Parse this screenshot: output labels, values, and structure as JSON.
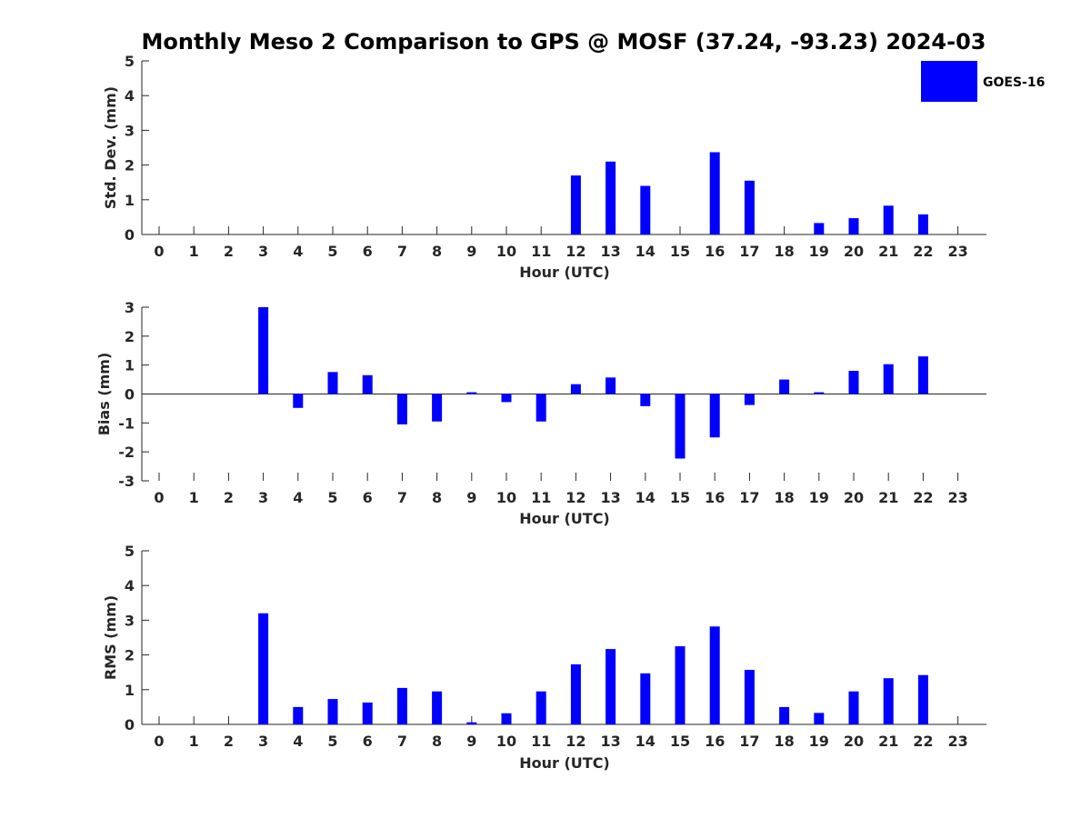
{
  "title": "Monthly Meso 2 Comparison to GPS @ MOSF (37.24, -93.23) 2024-03",
  "legend": {
    "label": "GOES-16",
    "color": "#0000ff"
  },
  "chart_data": [
    {
      "type": "bar",
      "xlabel": "Hour (UTC)",
      "ylabel": "Std. Dev. (mm)",
      "ylim": [
        0,
        5
      ],
      "yticks": [
        0,
        1,
        2,
        3,
        4,
        5
      ],
      "categories": [
        "0",
        "1",
        "2",
        "3",
        "4",
        "5",
        "6",
        "7",
        "8",
        "9",
        "10",
        "11",
        "12",
        "13",
        "14",
        "15",
        "16",
        "17",
        "18",
        "19",
        "20",
        "21",
        "22",
        "23"
      ],
      "series": [
        {
          "name": "GOES-16",
          "color": "#0000ff",
          "values": [
            null,
            null,
            null,
            null,
            null,
            null,
            null,
            null,
            null,
            null,
            null,
            null,
            1.7,
            2.1,
            1.4,
            null,
            2.37,
            1.55,
            null,
            0.33,
            0.47,
            0.83,
            0.58,
            null
          ]
        }
      ],
      "grid": false
    },
    {
      "type": "bar",
      "xlabel": "Hour (UTC)",
      "ylabel": "Bias (mm)",
      "ylim": [
        -3,
        3
      ],
      "yticks": [
        -3,
        -2,
        -1,
        0,
        1,
        2,
        3
      ],
      "categories": [
        "0",
        "1",
        "2",
        "3",
        "4",
        "5",
        "6",
        "7",
        "8",
        "9",
        "10",
        "11",
        "12",
        "13",
        "14",
        "15",
        "16",
        "17",
        "18",
        "19",
        "20",
        "21",
        "22",
        "23"
      ],
      "series": [
        {
          "name": "GOES-16",
          "color": "#0000ff",
          "values": [
            null,
            null,
            null,
            3.0,
            -0.48,
            0.76,
            0.65,
            -1.05,
            -0.95,
            0.06,
            -0.28,
            -0.95,
            0.34,
            0.57,
            -0.42,
            -2.23,
            -1.5,
            -0.38,
            0.5,
            0.06,
            0.8,
            1.03,
            1.3,
            null
          ]
        }
      ],
      "grid": false
    },
    {
      "type": "bar",
      "xlabel": "Hour (UTC)",
      "ylabel": "RMS (mm)",
      "ylim": [
        0,
        5
      ],
      "yticks": [
        0,
        1,
        2,
        3,
        4,
        5
      ],
      "categories": [
        "0",
        "1",
        "2",
        "3",
        "4",
        "5",
        "6",
        "7",
        "8",
        "9",
        "10",
        "11",
        "12",
        "13",
        "14",
        "15",
        "16",
        "17",
        "18",
        "19",
        "20",
        "21",
        "22",
        "23"
      ],
      "series": [
        {
          "name": "GOES-16",
          "color": "#0000ff",
          "values": [
            null,
            null,
            null,
            3.2,
            0.5,
            0.73,
            0.63,
            1.05,
            0.95,
            0.06,
            0.32,
            0.95,
            1.73,
            2.17,
            1.47,
            2.25,
            2.82,
            1.57,
            0.5,
            0.33,
            0.95,
            1.33,
            1.42,
            null
          ]
        }
      ],
      "grid": false
    }
  ]
}
